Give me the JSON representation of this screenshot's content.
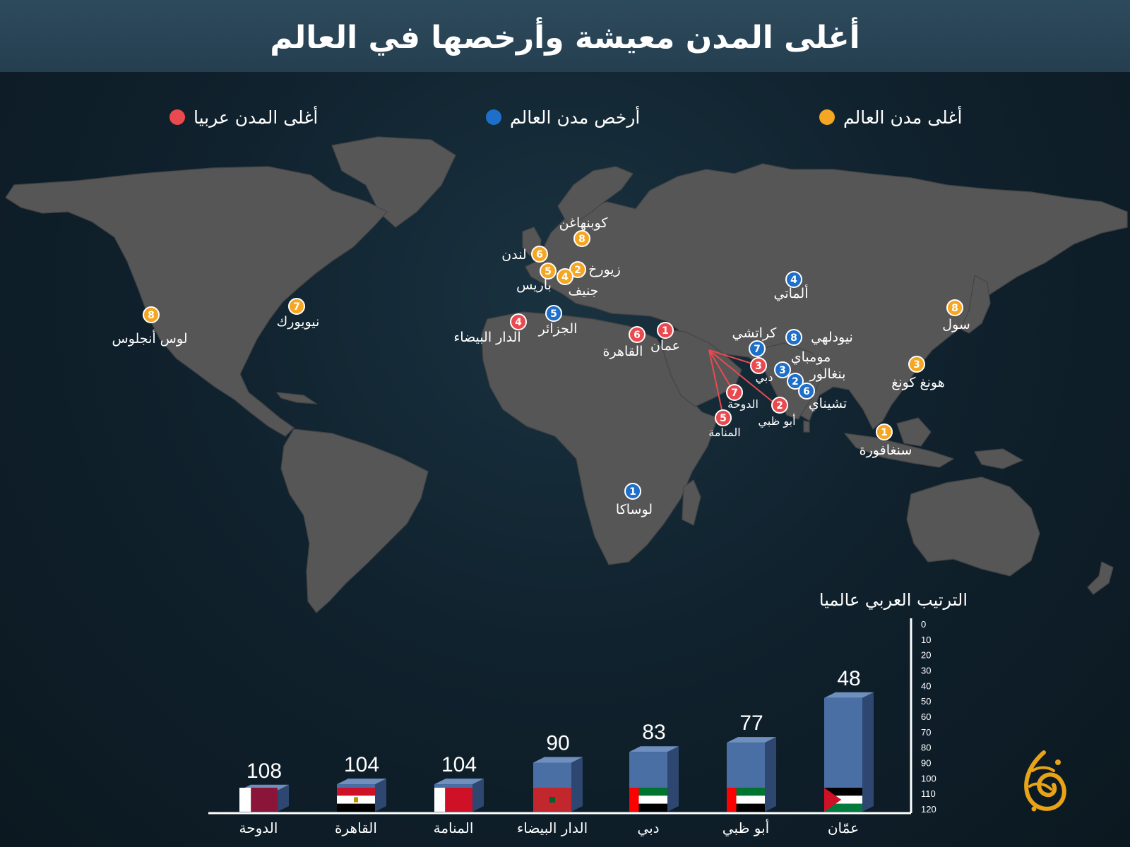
{
  "title": "أغلى المدن معيشة وأرخصها في العالم",
  "legend": [
    {
      "label": "أغلى مدن العالم",
      "color": "#f5a623"
    },
    {
      "label": "أرخص مدن العالم",
      "color": "#1e6fc9"
    },
    {
      "label": "أغلى المدن عربيا",
      "color": "#e94a4f"
    }
  ],
  "map": {
    "most_expensive": [
      {
        "rank": "1",
        "city": "سنغافورة"
      },
      {
        "rank": "2",
        "city": "زيورخ"
      },
      {
        "rank": "3",
        "city": "هونغ كونغ"
      },
      {
        "rank": "4",
        "city": "جنيف"
      },
      {
        "rank": "5",
        "city": "باريس"
      },
      {
        "rank": "6",
        "city": "لندن"
      },
      {
        "rank": "7",
        "city": "نيويورك"
      },
      {
        "rank": "8",
        "city": "كوبنهاغن"
      },
      {
        "rank": "8",
        "city": "لوس أنجلوس"
      },
      {
        "rank": "8",
        "city": "سول"
      }
    ],
    "cheapest": [
      {
        "rank": "1",
        "city": "لوساكا"
      },
      {
        "rank": "2",
        "city": "بنغالور"
      },
      {
        "rank": "3",
        "city": "مومباي"
      },
      {
        "rank": "4",
        "city": "ألماتي"
      },
      {
        "rank": "5",
        "city": "الجزائر"
      },
      {
        "rank": "6",
        "city": "تشيناي"
      },
      {
        "rank": "7",
        "city": "كراتشي"
      },
      {
        "rank": "8",
        "city": "نيودلهي"
      }
    ],
    "arab_expensive": [
      {
        "rank": "1",
        "city": "عمان"
      },
      {
        "rank": "2",
        "city": "أبو ظبي"
      },
      {
        "rank": "3",
        "city": "دبي"
      },
      {
        "rank": "4",
        "city": "الدار البيضاء"
      },
      {
        "rank": "5",
        "city": "المنامة"
      },
      {
        "rank": "6",
        "city": "القاهرة"
      },
      {
        "rank": "7",
        "city": "الدوحة"
      }
    ]
  },
  "chart_data": {
    "type": "bar",
    "title": "الترتيب العربي عالميا",
    "categories": [
      "الدوحة",
      "القاهرة",
      "المنامة",
      "الدار البيضاء",
      "دبي",
      "أبو ظبي",
      "عمّان"
    ],
    "values": [
      108,
      104,
      104,
      90,
      83,
      77,
      48
    ],
    "ylim": [
      0,
      120
    ],
    "y_ticks": [
      "0",
      "10",
      "20",
      "30",
      "40",
      "50",
      "60",
      "70",
      "80",
      "90",
      "100",
      "110",
      "120"
    ],
    "y_axis_note": "rank scale; lower rank = taller bar",
    "bar_color": "#4a6fa5",
    "flags": [
      "qatar-flag",
      "egypt-flag",
      "bahrain-flag",
      "morocco-flag",
      "uae-flag",
      "uae-flag",
      "jordan-flag"
    ]
  }
}
